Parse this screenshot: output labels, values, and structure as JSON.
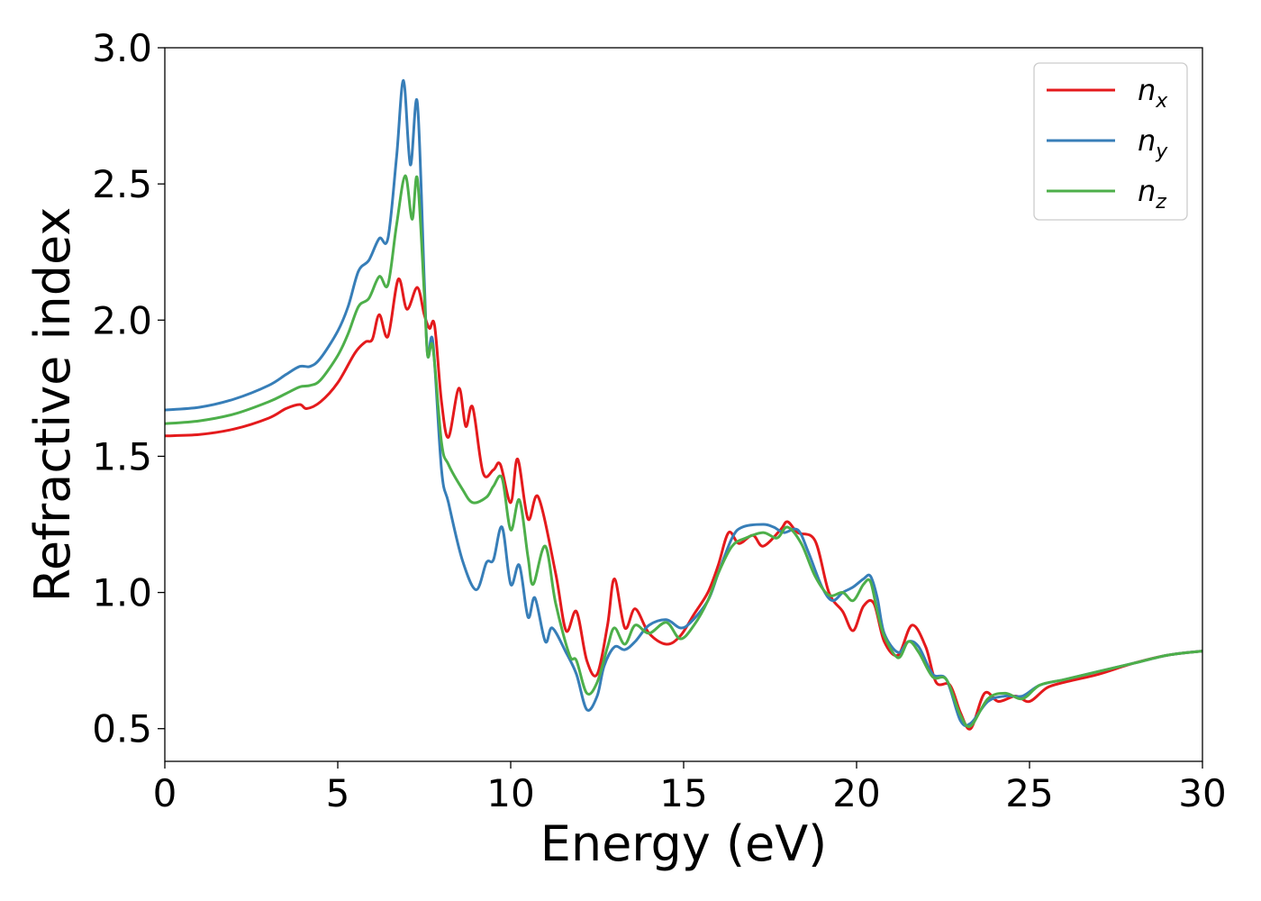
{
  "chart_data": {
    "type": "line",
    "xlabel": "Energy (eV)",
    "ylabel": "Refractive index",
    "xlim": [
      0,
      30
    ],
    "ylim": [
      0.38,
      3.0
    ],
    "xticks": [
      "0",
      "5",
      "10",
      "15",
      "20",
      "25",
      "30"
    ],
    "yticks": [
      "0.5",
      "1.0",
      "1.5",
      "2.0",
      "2.5",
      "3.0"
    ],
    "grid": false,
    "legend_position": "top-right",
    "series": [
      {
        "name": "n_x",
        "label_base": "n",
        "label_sub": "x",
        "color": "#e41a1c",
        "points": [
          [
            0,
            1.575
          ],
          [
            1,
            1.58
          ],
          [
            2,
            1.6
          ],
          [
            3,
            1.64
          ],
          [
            3.5,
            1.675
          ],
          [
            3.9,
            1.69
          ],
          [
            4.1,
            1.675
          ],
          [
            4.5,
            1.7
          ],
          [
            5,
            1.77
          ],
          [
            5.5,
            1.88
          ],
          [
            5.8,
            1.92
          ],
          [
            6.0,
            1.93
          ],
          [
            6.2,
            2.02
          ],
          [
            6.45,
            1.94
          ],
          [
            6.75,
            2.15
          ],
          [
            7.0,
            2.04
          ],
          [
            7.3,
            2.12
          ],
          [
            7.5,
            2.02
          ],
          [
            7.65,
            1.97
          ],
          [
            7.8,
            1.98
          ],
          [
            8.0,
            1.7
          ],
          [
            8.2,
            1.57
          ],
          [
            8.5,
            1.75
          ],
          [
            8.7,
            1.61
          ],
          [
            8.9,
            1.68
          ],
          [
            9.2,
            1.44
          ],
          [
            9.5,
            1.45
          ],
          [
            9.7,
            1.47
          ],
          [
            10.0,
            1.33
          ],
          [
            10.2,
            1.49
          ],
          [
            10.5,
            1.27
          ],
          [
            10.8,
            1.35
          ],
          [
            11.3,
            1.07
          ],
          [
            11.6,
            0.86
          ],
          [
            11.9,
            0.93
          ],
          [
            12.2,
            0.75
          ],
          [
            12.5,
            0.7
          ],
          [
            12.8,
            0.88
          ],
          [
            13.0,
            1.05
          ],
          [
            13.3,
            0.87
          ],
          [
            13.6,
            0.94
          ],
          [
            14.0,
            0.85
          ],
          [
            14.5,
            0.81
          ],
          [
            14.9,
            0.84
          ],
          [
            15.3,
            0.92
          ],
          [
            15.7,
            1.0
          ],
          [
            16.0,
            1.1
          ],
          [
            16.3,
            1.22
          ],
          [
            16.6,
            1.18
          ],
          [
            17.0,
            1.21
          ],
          [
            17.3,
            1.17
          ],
          [
            17.8,
            1.23
          ],
          [
            18.0,
            1.26
          ],
          [
            18.3,
            1.22
          ],
          [
            18.8,
            1.19
          ],
          [
            19.2,
            1.0
          ],
          [
            19.6,
            0.93
          ],
          [
            19.9,
            0.86
          ],
          [
            20.2,
            0.95
          ],
          [
            20.5,
            0.96
          ],
          [
            20.8,
            0.82
          ],
          [
            21.2,
            0.77
          ],
          [
            21.6,
            0.88
          ],
          [
            22.0,
            0.8
          ],
          [
            22.3,
            0.67
          ],
          [
            22.7,
            0.66
          ],
          [
            23.0,
            0.56
          ],
          [
            23.3,
            0.5
          ],
          [
            23.7,
            0.63
          ],
          [
            24.1,
            0.6
          ],
          [
            24.6,
            0.62
          ],
          [
            25.0,
            0.6
          ],
          [
            25.5,
            0.65
          ],
          [
            26.0,
            0.67
          ],
          [
            27.0,
            0.7
          ],
          [
            28.0,
            0.74
          ],
          [
            29.0,
            0.77
          ],
          [
            30.0,
            0.785
          ]
        ]
      },
      {
        "name": "n_y",
        "label_base": "n",
        "label_sub": "y",
        "color": "#377eb8",
        "points": [
          [
            0,
            1.67
          ],
          [
            1,
            1.68
          ],
          [
            2,
            1.71
          ],
          [
            3,
            1.76
          ],
          [
            3.5,
            1.8
          ],
          [
            3.9,
            1.83
          ],
          [
            4.2,
            1.83
          ],
          [
            4.5,
            1.86
          ],
          [
            5,
            1.96
          ],
          [
            5.3,
            2.05
          ],
          [
            5.6,
            2.18
          ],
          [
            5.9,
            2.22
          ],
          [
            6.2,
            2.3
          ],
          [
            6.45,
            2.3
          ],
          [
            6.7,
            2.6
          ],
          [
            6.9,
            2.88
          ],
          [
            7.1,
            2.57
          ],
          [
            7.3,
            2.8
          ],
          [
            7.5,
            2.15
          ],
          [
            7.6,
            1.87
          ],
          [
            7.75,
            1.92
          ],
          [
            8.0,
            1.45
          ],
          [
            8.2,
            1.33
          ],
          [
            8.6,
            1.12
          ],
          [
            9.0,
            1.01
          ],
          [
            9.3,
            1.11
          ],
          [
            9.5,
            1.12
          ],
          [
            9.75,
            1.24
          ],
          [
            10.0,
            1.03
          ],
          [
            10.25,
            1.1
          ],
          [
            10.5,
            0.91
          ],
          [
            10.7,
            0.98
          ],
          [
            11.0,
            0.82
          ],
          [
            11.2,
            0.87
          ],
          [
            11.6,
            0.78
          ],
          [
            11.9,
            0.7
          ],
          [
            12.2,
            0.57
          ],
          [
            12.5,
            0.62
          ],
          [
            12.7,
            0.73
          ],
          [
            13.0,
            0.8
          ],
          [
            13.3,
            0.79
          ],
          [
            13.6,
            0.82
          ],
          [
            14.0,
            0.88
          ],
          [
            14.5,
            0.9
          ],
          [
            14.9,
            0.87
          ],
          [
            15.2,
            0.89
          ],
          [
            15.7,
            0.97
          ],
          [
            16.0,
            1.07
          ],
          [
            16.4,
            1.2
          ],
          [
            16.7,
            1.24
          ],
          [
            17.3,
            1.25
          ],
          [
            17.6,
            1.24
          ],
          [
            17.9,
            1.22
          ],
          [
            18.3,
            1.23
          ],
          [
            18.6,
            1.15
          ],
          [
            19.0,
            1.02
          ],
          [
            19.3,
            0.97
          ],
          [
            19.6,
            1.0
          ],
          [
            19.9,
            1.02
          ],
          [
            20.2,
            1.05
          ],
          [
            20.4,
            1.06
          ],
          [
            20.6,
            0.98
          ],
          [
            20.8,
            0.85
          ],
          [
            21.2,
            0.78
          ],
          [
            21.5,
            0.82
          ],
          [
            21.8,
            0.8
          ],
          [
            22.2,
            0.7
          ],
          [
            22.6,
            0.68
          ],
          [
            23.0,
            0.53
          ],
          [
            23.3,
            0.52
          ],
          [
            23.8,
            0.6
          ],
          [
            24.3,
            0.62
          ],
          [
            24.8,
            0.62
          ],
          [
            25.3,
            0.66
          ],
          [
            26.0,
            0.68
          ],
          [
            27.0,
            0.71
          ],
          [
            28.0,
            0.74
          ],
          [
            29.0,
            0.77
          ],
          [
            30.0,
            0.785
          ]
        ]
      },
      {
        "name": "n_z",
        "label_base": "n",
        "label_sub": "z",
        "color": "#4daf4a",
        "points": [
          [
            0,
            1.62
          ],
          [
            1,
            1.63
          ],
          [
            2,
            1.655
          ],
          [
            3,
            1.7
          ],
          [
            3.5,
            1.73
          ],
          [
            3.9,
            1.755
          ],
          [
            4.2,
            1.76
          ],
          [
            4.5,
            1.78
          ],
          [
            5,
            1.87
          ],
          [
            5.3,
            1.95
          ],
          [
            5.6,
            2.05
          ],
          [
            5.9,
            2.08
          ],
          [
            6.2,
            2.16
          ],
          [
            6.45,
            2.13
          ],
          [
            6.7,
            2.35
          ],
          [
            6.95,
            2.53
          ],
          [
            7.15,
            2.37
          ],
          [
            7.3,
            2.52
          ],
          [
            7.5,
            2.1
          ],
          [
            7.6,
            1.87
          ],
          [
            7.75,
            1.9
          ],
          [
            8.0,
            1.55
          ],
          [
            8.2,
            1.47
          ],
          [
            8.6,
            1.38
          ],
          [
            8.9,
            1.33
          ],
          [
            9.3,
            1.35
          ],
          [
            9.5,
            1.39
          ],
          [
            9.75,
            1.42
          ],
          [
            10.0,
            1.23
          ],
          [
            10.25,
            1.34
          ],
          [
            10.5,
            1.13
          ],
          [
            10.65,
            1.03
          ],
          [
            11.0,
            1.17
          ],
          [
            11.3,
            0.96
          ],
          [
            11.7,
            0.77
          ],
          [
            11.9,
            0.75
          ],
          [
            12.2,
            0.63
          ],
          [
            12.5,
            0.67
          ],
          [
            12.8,
            0.8
          ],
          [
            13.0,
            0.87
          ],
          [
            13.3,
            0.81
          ],
          [
            13.6,
            0.88
          ],
          [
            14.0,
            0.85
          ],
          [
            14.5,
            0.89
          ],
          [
            14.9,
            0.83
          ],
          [
            15.3,
            0.88
          ],
          [
            15.7,
            0.97
          ],
          [
            16.0,
            1.07
          ],
          [
            16.4,
            1.17
          ],
          [
            16.8,
            1.2
          ],
          [
            17.3,
            1.22
          ],
          [
            17.7,
            1.2
          ],
          [
            18.0,
            1.24
          ],
          [
            18.4,
            1.18
          ],
          [
            18.8,
            1.06
          ],
          [
            19.2,
            0.99
          ],
          [
            19.6,
            1.0
          ],
          [
            19.9,
            0.97
          ],
          [
            20.2,
            1.03
          ],
          [
            20.4,
            1.04
          ],
          [
            20.6,
            0.93
          ],
          [
            20.8,
            0.84
          ],
          [
            21.2,
            0.76
          ],
          [
            21.5,
            0.82
          ],
          [
            21.8,
            0.78
          ],
          [
            22.2,
            0.69
          ],
          [
            22.6,
            0.68
          ],
          [
            23.0,
            0.55
          ],
          [
            23.3,
            0.51
          ],
          [
            23.8,
            0.61
          ],
          [
            24.3,
            0.63
          ],
          [
            24.8,
            0.61
          ],
          [
            25.3,
            0.66
          ],
          [
            26.0,
            0.68
          ],
          [
            27.0,
            0.71
          ],
          [
            28.0,
            0.74
          ],
          [
            29.0,
            0.77
          ],
          [
            30.0,
            0.785
          ]
        ]
      }
    ]
  }
}
